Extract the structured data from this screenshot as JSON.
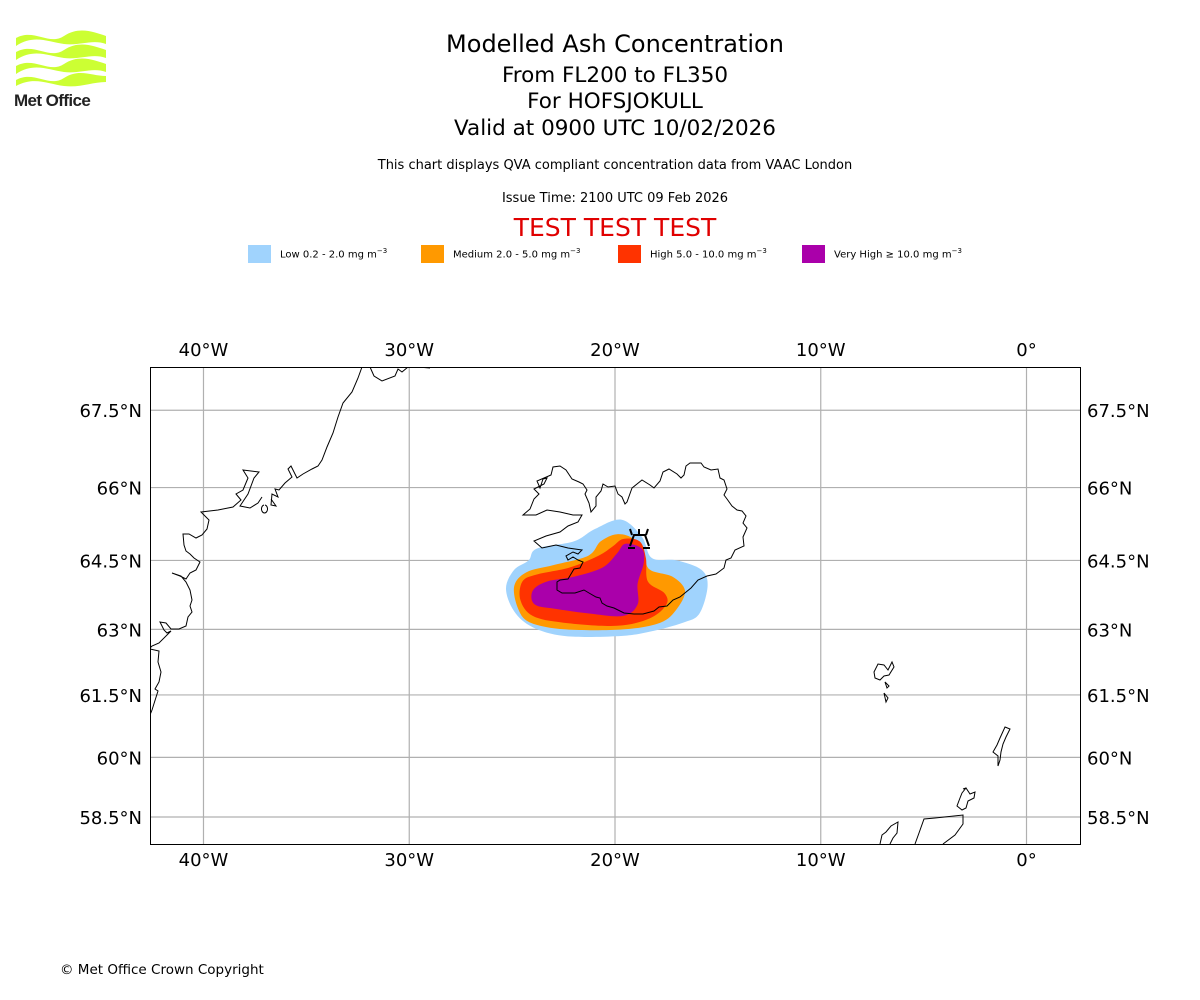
{
  "header": {
    "logo_text": "Met Office",
    "logo_color": "#ccff33",
    "title": "Modelled Ash Concentration",
    "flight_levels": "From FL200 to FL350",
    "volcano": "For HOFSJOKULL",
    "valid_time": "Valid at 0900 UTC 10/02/2026",
    "subtitle": "This chart displays QVA compliant concentration data from VAAC London",
    "issue_time": "Issue Time: 2100 UTC 09 Feb 2026",
    "test_banner": "TEST TEST TEST",
    "test_banner_color": "#e00000"
  },
  "legend": [
    {
      "level": "Low",
      "label": "Low 0.2 - 2.0 mg m",
      "unit_exp": "−3",
      "color": "#a0d3fd"
    },
    {
      "level": "Medium",
      "label": "Medium 2.0 - 5.0 mg m",
      "unit_exp": "−3",
      "color": "#ff9900"
    },
    {
      "level": "High",
      "label": "High 5.0 - 10.0 mg m",
      "unit_exp": "−3",
      "color": "#ff3300"
    },
    {
      "level": "Very High",
      "label": "Very High  ≥  10.0 mg m",
      "unit_exp": "−3",
      "color": "#aa00aa"
    }
  ],
  "chart_data": {
    "type": "map",
    "title": "Modelled Ash Concentration",
    "extent": {
      "lon": [
        -42.6,
        2.6
      ],
      "lat": [
        57.8,
        68.3
      ]
    },
    "lon_ticks": [
      {
        "value": -40,
        "label": "40°W"
      },
      {
        "value": -30,
        "label": "30°W"
      },
      {
        "value": -20,
        "label": "20°W"
      },
      {
        "value": -10,
        "label": "10°W"
      },
      {
        "value": 0,
        "label": "0°"
      }
    ],
    "lat_ticks": [
      {
        "value": 67.5,
        "label": "67.5°N"
      },
      {
        "value": 66,
        "label": "66°N"
      },
      {
        "value": 64.5,
        "label": "64.5°N"
      },
      {
        "value": 63,
        "label": "63°N"
      },
      {
        "value": 61.5,
        "label": "61.5°N"
      },
      {
        "value": 60,
        "label": "60°N"
      },
      {
        "value": 58.5,
        "label": "58.5°N"
      }
    ],
    "grid": true,
    "volcano": {
      "name": "HOFSJOKULL",
      "lon": -18.9,
      "lat": 64.8,
      "symbol": "volcano-icon"
    },
    "ash_levels": [
      {
        "level": "Low",
        "color": "#a0d3fd",
        "polygon": [
          [
            -19.7,
            65.35
          ],
          [
            -18.7,
            65.0
          ],
          [
            -18.2,
            64.55
          ],
          [
            -17.0,
            64.5
          ],
          [
            -15.8,
            64.3
          ],
          [
            -15.5,
            63.95
          ],
          [
            -15.9,
            63.35
          ],
          [
            -16.7,
            63.15
          ],
          [
            -18.3,
            62.95
          ],
          [
            -19.8,
            62.85
          ],
          [
            -22.4,
            62.85
          ],
          [
            -24.0,
            63.05
          ],
          [
            -24.9,
            63.4
          ],
          [
            -25.3,
            63.9
          ],
          [
            -24.9,
            64.3
          ],
          [
            -24.2,
            64.5
          ],
          [
            -23.8,
            64.75
          ],
          [
            -22.0,
            64.9
          ],
          [
            -21.0,
            65.15
          ]
        ]
      },
      {
        "level": "Medium",
        "color": "#ff9900",
        "polygon": [
          [
            -19.9,
            65.05
          ],
          [
            -19.1,
            64.95
          ],
          [
            -18.6,
            64.6
          ],
          [
            -18.3,
            64.3
          ],
          [
            -17.2,
            64.15
          ],
          [
            -16.6,
            63.85
          ],
          [
            -17.0,
            63.45
          ],
          [
            -17.8,
            63.15
          ],
          [
            -19.6,
            63.0
          ],
          [
            -22.4,
            63.0
          ],
          [
            -24.1,
            63.15
          ],
          [
            -24.7,
            63.45
          ],
          [
            -24.9,
            63.95
          ],
          [
            -24.3,
            64.25
          ],
          [
            -23.0,
            64.4
          ],
          [
            -21.3,
            64.6
          ],
          [
            -20.7,
            64.9
          ]
        ]
      },
      {
        "level": "High",
        "color": "#ff3300",
        "polygon": [
          [
            -19.6,
            64.95
          ],
          [
            -18.8,
            64.9
          ],
          [
            -18.5,
            64.55
          ],
          [
            -18.4,
            64.05
          ],
          [
            -17.6,
            63.8
          ],
          [
            -17.5,
            63.55
          ],
          [
            -18.3,
            63.25
          ],
          [
            -19.9,
            63.08
          ],
          [
            -22.5,
            63.15
          ],
          [
            -24.0,
            63.3
          ],
          [
            -24.6,
            63.65
          ],
          [
            -24.5,
            64.05
          ],
          [
            -23.8,
            64.2
          ],
          [
            -22.2,
            64.35
          ],
          [
            -20.8,
            64.6
          ],
          [
            -20.1,
            64.8
          ]
        ]
      },
      {
        "level": "Very High",
        "color": "#aa00aa",
        "polygon": [
          [
            -19.5,
            64.85
          ],
          [
            -18.7,
            64.75
          ],
          [
            -18.6,
            64.45
          ],
          [
            -18.9,
            64.0
          ],
          [
            -18.9,
            63.55
          ],
          [
            -19.6,
            63.3
          ],
          [
            -21.2,
            63.35
          ],
          [
            -22.8,
            63.45
          ],
          [
            -23.9,
            63.55
          ],
          [
            -24.0,
            63.85
          ],
          [
            -23.3,
            64.05
          ],
          [
            -22.0,
            64.15
          ],
          [
            -20.6,
            64.35
          ],
          [
            -19.9,
            64.65
          ]
        ]
      }
    ]
  },
  "footer": {
    "copyright": "© Met Office Crown Copyright"
  }
}
